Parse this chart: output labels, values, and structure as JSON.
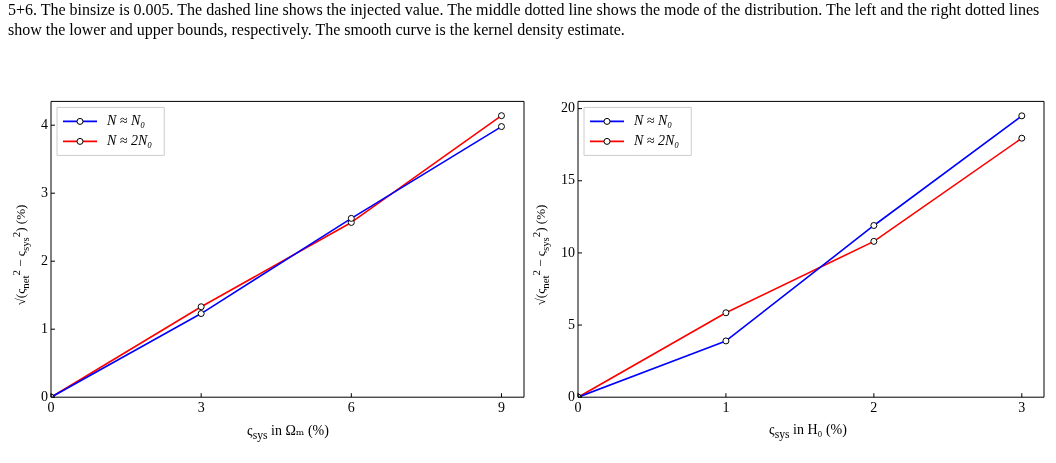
{
  "chart_data": [
    {
      "type": "line",
      "annotations": [
        "5+6. The binsize is 0.005. The dashed line shows the injected value. The middle dotted line shows the mode of the distribution. The left and the right dotted lines show the lower and upper bounds, respectively. The smooth curve is the kernel density estimate."
      ],
      "xlabel": "ς$_{sys}$ in Ωₘ (%)",
      "ylabel": "√(ς$_{net}$$^{2}$ − ς$_{sys}$$^{2}$) (%)",
      "x": [
        0,
        3,
        6,
        9
      ],
      "xlim": [
        0,
        9.45
      ],
      "xticks": [
        0,
        3,
        6,
        9
      ],
      "ylim": [
        0,
        4.35
      ],
      "yticks": [
        0,
        1,
        2,
        3,
        4
      ],
      "grid": false,
      "legend": "top left",
      "marker": "circle",
      "line_style": "solid",
      "series": [
        {
          "name": "N ≈ N₀",
          "color": "#0000ff",
          "values": [
            0,
            1.23,
            2.63,
            3.98
          ]
        },
        {
          "name": "N ≈ 2N₀",
          "color": "#ff0000",
          "values": [
            0,
            1.33,
            2.57,
            4.14
          ]
        }
      ]
    },
    {
      "type": "line",
      "xlabel": "ς$_{sys}$ in H₀ (%)",
      "ylabel": "√(ς$_{net}$$^{2}$ − ς$_{sys}$$^{2}$) (%)",
      "x": [
        0,
        1,
        2,
        3
      ],
      "xlim": [
        0,
        3.15
      ],
      "xticks": [
        0,
        1,
        2,
        3
      ],
      "ylim": [
        0,
        20.5
      ],
      "yticks": [
        0,
        5,
        10,
        15,
        20
      ],
      "grid": false,
      "legend": "top left",
      "marker": "circle",
      "line_style": "solid",
      "series": [
        {
          "name": "N ≈ N₀",
          "color": "#0000ff",
          "values": [
            0,
            3.9,
            11.9,
            19.5
          ]
        },
        {
          "name": "N ≈ 2N₀",
          "color": "#ff0000",
          "values": [
            0,
            5.85,
            10.8,
            17.95
          ]
        }
      ]
    }
  ]
}
